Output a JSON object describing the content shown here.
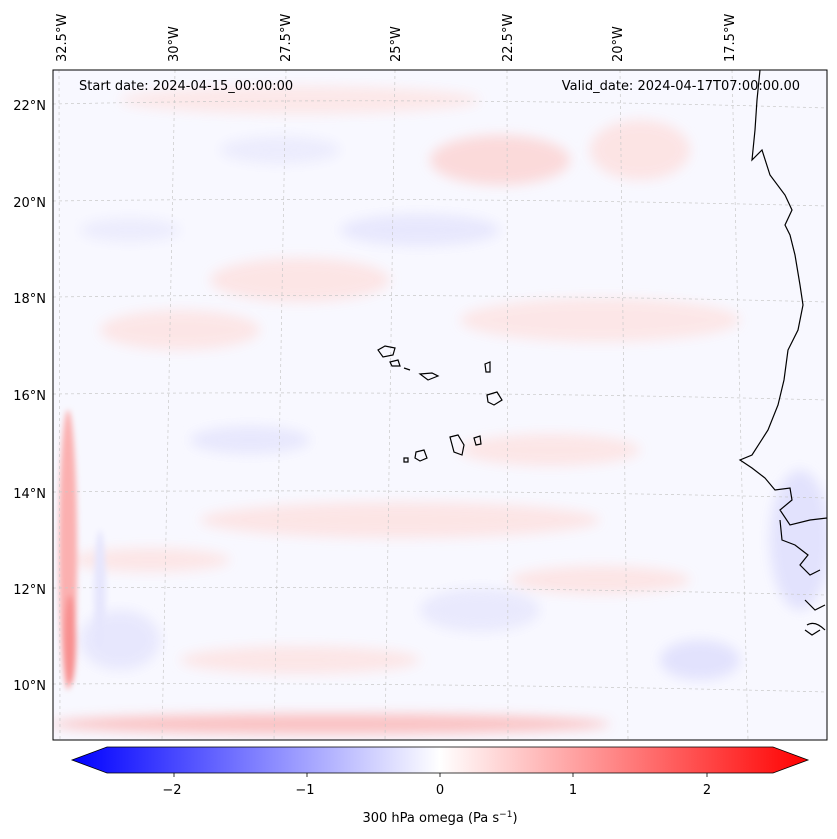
{
  "map": {
    "start_date": "Start date: 2024-04-15_00:00:00",
    "valid_date": "Valid_date: 2024-04-17T07:00:00.00",
    "lon_labels": [
      "32.5°W",
      "30°W",
      "27.5°W",
      "25°W",
      "22.5°W",
      "20°W",
      "17.5°W"
    ],
    "lat_labels": [
      "22°N",
      "20°N",
      "18°N",
      "16°N",
      "14°N",
      "12°N",
      "10°N"
    ],
    "field_variable": "300 hPa omega",
    "colormap": [
      "#0000ff",
      "#ffffff",
      "#ff0000"
    ],
    "coastline_color": "#000000",
    "gridline_color": "#c8c8c8"
  },
  "colorbar": {
    "ticks": [
      "−2",
      "−1",
      "0",
      "1",
      "2"
    ],
    "tick_values": [
      -2,
      -1,
      0,
      1,
      2
    ],
    "range": [
      -2.5,
      2.5
    ],
    "label_main": "300 hPa omega (Pa s",
    "label_exp": "−1",
    "label_close": ")"
  }
}
